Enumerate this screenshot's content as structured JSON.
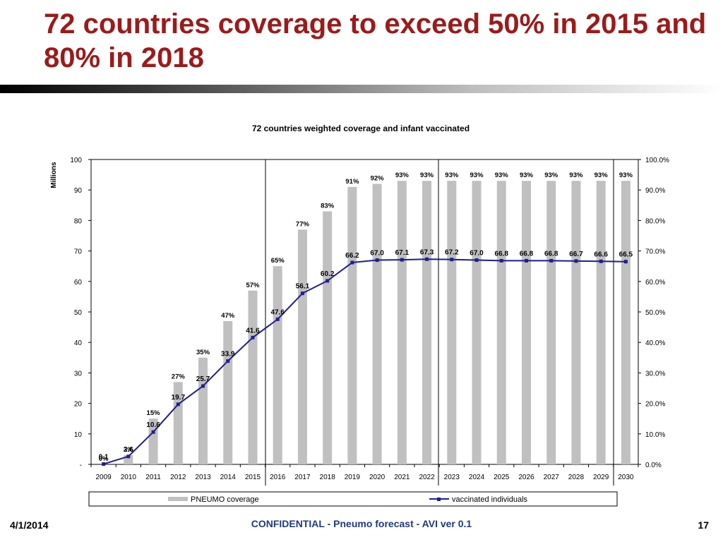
{
  "slide": {
    "title": "72 countries coverage to exceed 50% in 2015 and 80% in 2018",
    "title_color": "#9b1b1b",
    "footer_date": "4/1/2014",
    "footer_center": "CONFIDENTIAL - Pneumo forecast - AVI ver 0.1",
    "footer_center_color": "#1f3a7a",
    "page_number": "17"
  },
  "chart_data": {
    "type": "bar",
    "title": "72 countries weighted coverage and infant vaccinated",
    "categories": [
      "2009",
      "2010",
      "2011",
      "2012",
      "2013",
      "2014",
      "2015",
      "2016",
      "2017",
      "2018",
      "2019",
      "2020",
      "2021",
      "2022",
      "2023",
      "2024",
      "2025",
      "2026",
      "2027",
      "2028",
      "2029",
      "2030"
    ],
    "ylabel_left": "Millions",
    "ylim_left": [
      0,
      100
    ],
    "left_ticks": [
      "-",
      "10",
      "20",
      "30",
      "40",
      "50",
      "60",
      "70",
      "80",
      "90",
      "100"
    ],
    "ylim_right": [
      0,
      100
    ],
    "right_ticks": [
      "0.0%",
      "10.0%",
      "20.0%",
      "30.0%",
      "40.0%",
      "50.0%",
      "60.0%",
      "70.0%",
      "80.0%",
      "90.0%",
      "100.0%"
    ],
    "gridlines": false,
    "legend_position": "bottom",
    "series": [
      {
        "name": "PNEUMO coverage",
        "type": "bar",
        "axis": "right",
        "color": "#c0c0c0",
        "values": [
          0,
          3,
          15,
          27,
          35,
          47,
          57,
          65,
          77,
          83,
          91,
          92,
          93,
          93,
          93,
          93,
          93,
          93,
          93,
          93,
          93,
          93
        ],
        "labels": [
          "0%",
          "3%",
          "15%",
          "27%",
          "35%",
          "47%",
          "57%",
          "65%",
          "77%",
          "83%",
          "91%",
          "92%",
          "93%",
          "93%",
          "93%",
          "93%",
          "93%",
          "93%",
          "93%",
          "93%",
          "93%",
          "93%"
        ]
      },
      {
        "name": "vaccinated individuals",
        "type": "line",
        "axis": "left",
        "color": "#1f1f8f",
        "values": [
          0.1,
          2.6,
          10.6,
          19.7,
          25.7,
          33.9,
          41.6,
          47.6,
          56.1,
          60.2,
          66.2,
          67.0,
          67.1,
          67.3,
          67.2,
          67.0,
          66.8,
          66.8,
          66.8,
          66.7,
          66.6,
          66.5
        ],
        "labels": [
          "0.1",
          "2.6",
          "10.6",
          "19.7",
          "25.7",
          "33.9",
          "41.6",
          "47.6",
          "56.1",
          "60.2",
          "66.2",
          "67.0",
          "67.1",
          "67.3",
          "67.2",
          "67.0",
          "66.8",
          "66.8",
          "66.8",
          "66.7",
          "66.6",
          "66.5"
        ]
      }
    ]
  }
}
